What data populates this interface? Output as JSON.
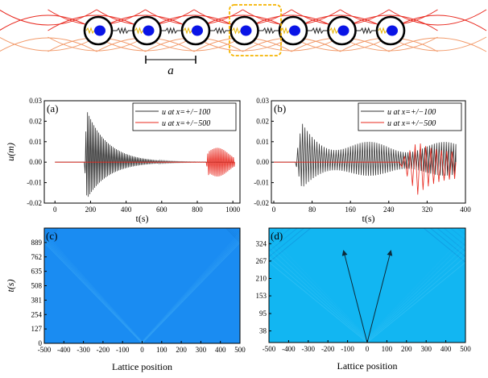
{
  "schematic": {
    "lattice_label": "a",
    "num_masses": 7,
    "colors": {
      "ring": "#000000",
      "mass": "#0a14e6",
      "spring_inner": "#e8b400",
      "spring_chain": "#222222",
      "long_range_top": "#e8281e",
      "long_range_bottom": "#f29a6a",
      "unit_cell": "#f5b400"
    }
  },
  "chart_data": [
    {
      "id": "a",
      "type": "line",
      "panel_label": "(a)",
      "xlabel": "t(s)",
      "ylabel": "u(m)",
      "xlim": [
        -60,
        1040
      ],
      "ylim": [
        -0.02,
        0.03
      ],
      "xticks": [
        0,
        200,
        400,
        600,
        800,
        1000
      ],
      "yticks": [
        -0.02,
        -0.01,
        0.0,
        0.01,
        0.02,
        0.03
      ],
      "ytick_labels": [
        "-0.02",
        "-0.01",
        "0.00",
        "0.01",
        "0.02",
        "0.03"
      ],
      "legend": {
        "position": "top-right",
        "entries": [
          "u at x=+/−100",
          "u at x=+/−500"
        ]
      },
      "series": [
        {
          "name": "u at x=+/−100",
          "color": "#333333",
          "onset": 165,
          "peak_t": 180,
          "peak": 0.025,
          "min": -0.018,
          "decay_to": 700,
          "end": 1010,
          "period": 9
        },
        {
          "name": "u at x=+/−500",
          "color": "#e8281e",
          "onset": 850,
          "peak": 0.007,
          "min": -0.007,
          "end": 1010,
          "period": 9
        }
      ]
    },
    {
      "id": "b",
      "type": "line",
      "panel_label": "(b)",
      "xlabel": "t(s)",
      "ylabel": "",
      "xlim": [
        -5,
        400
      ],
      "ylim": [
        -0.02,
        0.03
      ],
      "xticks": [
        0,
        80,
        160,
        240,
        320,
        400
      ],
      "yticks": [
        -0.02,
        -0.01,
        0.0,
        0.01,
        0.02,
        0.03
      ],
      "ytick_labels": [
        "-0.02",
        "-0.01",
        "0.00",
        "0.01",
        "0.02",
        "0.03"
      ],
      "legend": {
        "position": "top-right",
        "entries": [
          "u at x=+/−100",
          "u at x=+/−500"
        ]
      },
      "series": [
        {
          "name": "u at x=+/−100",
          "color": "#333333",
          "onset": 45,
          "peak_t": 60,
          "peak": 0.021,
          "min": -0.014,
          "end": 380,
          "period": 5
        },
        {
          "name": "u at x=+/−500",
          "color": "#e8281e",
          "onset": 262,
          "peak_t": 300,
          "peak": 0.01,
          "min": -0.016,
          "end": 380,
          "period": 11
        }
      ]
    },
    {
      "id": "c",
      "type": "heatmap",
      "panel_label": "(c)",
      "xlabel": "Lattice position",
      "ylabel": "t(s)",
      "xlim": [
        -500,
        500
      ],
      "ylim": [
        0,
        1016
      ],
      "xticks": [
        -500,
        -400,
        -300,
        -200,
        -100,
        0,
        100,
        200,
        300,
        400,
        500
      ],
      "yticks": [
        0,
        127,
        254,
        381,
        508,
        635,
        762,
        889
      ],
      "background": "#1a8cf2",
      "wave_color": "#3aa8f5",
      "wavefront_speed": 0.5625
    },
    {
      "id": "d",
      "type": "heatmap",
      "panel_label": "(d)",
      "xlabel": "Lattice position",
      "ylabel": "",
      "xlim": [
        -500,
        500
      ],
      "ylim": [
        0,
        375
      ],
      "xticks": [
        -500,
        -400,
        -300,
        -200,
        -100,
        0,
        100,
        200,
        300,
        400,
        500
      ],
      "yticks": [
        38,
        95,
        153,
        210,
        267,
        324
      ],
      "background": "#12b6f2",
      "wave_color": "#3cc4f5",
      "wavefront_speed": 1.9,
      "arrows": [
        {
          "from": [
            0,
            0
          ],
          "to": [
            -120,
            300
          ]
        },
        {
          "from": [
            0,
            0
          ],
          "to": [
            120,
            300
          ]
        }
      ]
    }
  ]
}
